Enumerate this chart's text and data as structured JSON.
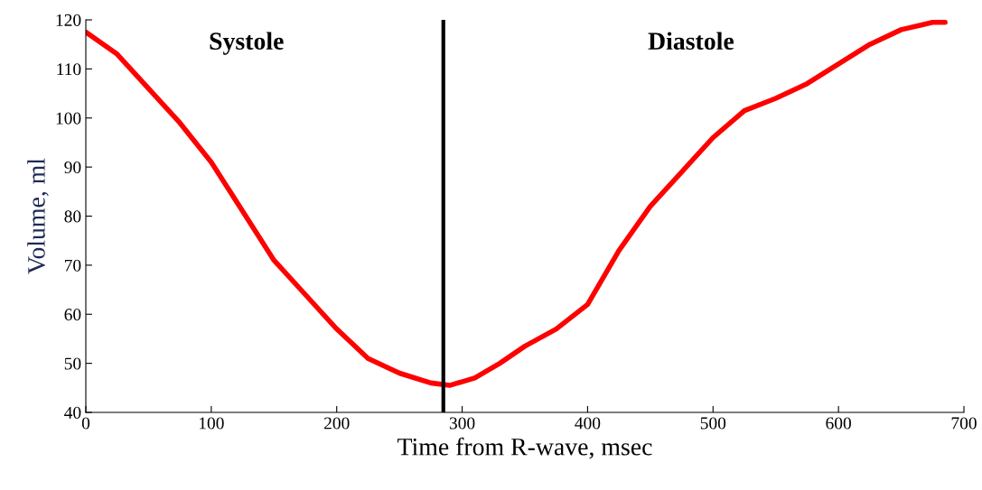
{
  "chart_data": {
    "type": "line",
    "xlabel": "Time from R-wave, msec",
    "ylabel": "Volume, ml",
    "series": [
      {
        "color": "#ff0000",
        "x": [
          0,
          25,
          50,
          75,
          100,
          125,
          150,
          175,
          200,
          225,
          250,
          275,
          290,
          310,
          330,
          350,
          375,
          400,
          425,
          450,
          475,
          500,
          525,
          550,
          575,
          600,
          625,
          650,
          675,
          685
        ],
        "values": [
          117.5,
          113,
          106,
          99,
          91,
          81,
          71,
          64,
          57,
          51,
          48,
          46,
          45.5,
          47,
          50,
          53.5,
          57,
          62,
          73,
          82,
          89,
          96,
          101.5,
          104,
          107,
          111,
          115,
          118,
          119.5,
          119.5
        ]
      }
    ],
    "xlim": [
      0,
      700
    ],
    "xticks": [
      0,
      100,
      200,
      300,
      400,
      500,
      600,
      700
    ],
    "ylim": [
      40,
      120
    ],
    "yticks": [
      40,
      50,
      60,
      70,
      80,
      90,
      100,
      110,
      120
    ],
    "ref_lines": [
      {
        "axis": "x",
        "value": 285,
        "color": "#000000"
      }
    ],
    "annotations": [
      "Systole",
      "Diastole"
    ],
    "grid": false,
    "legend": false,
    "line_style": "solid",
    "marker": "none"
  }
}
